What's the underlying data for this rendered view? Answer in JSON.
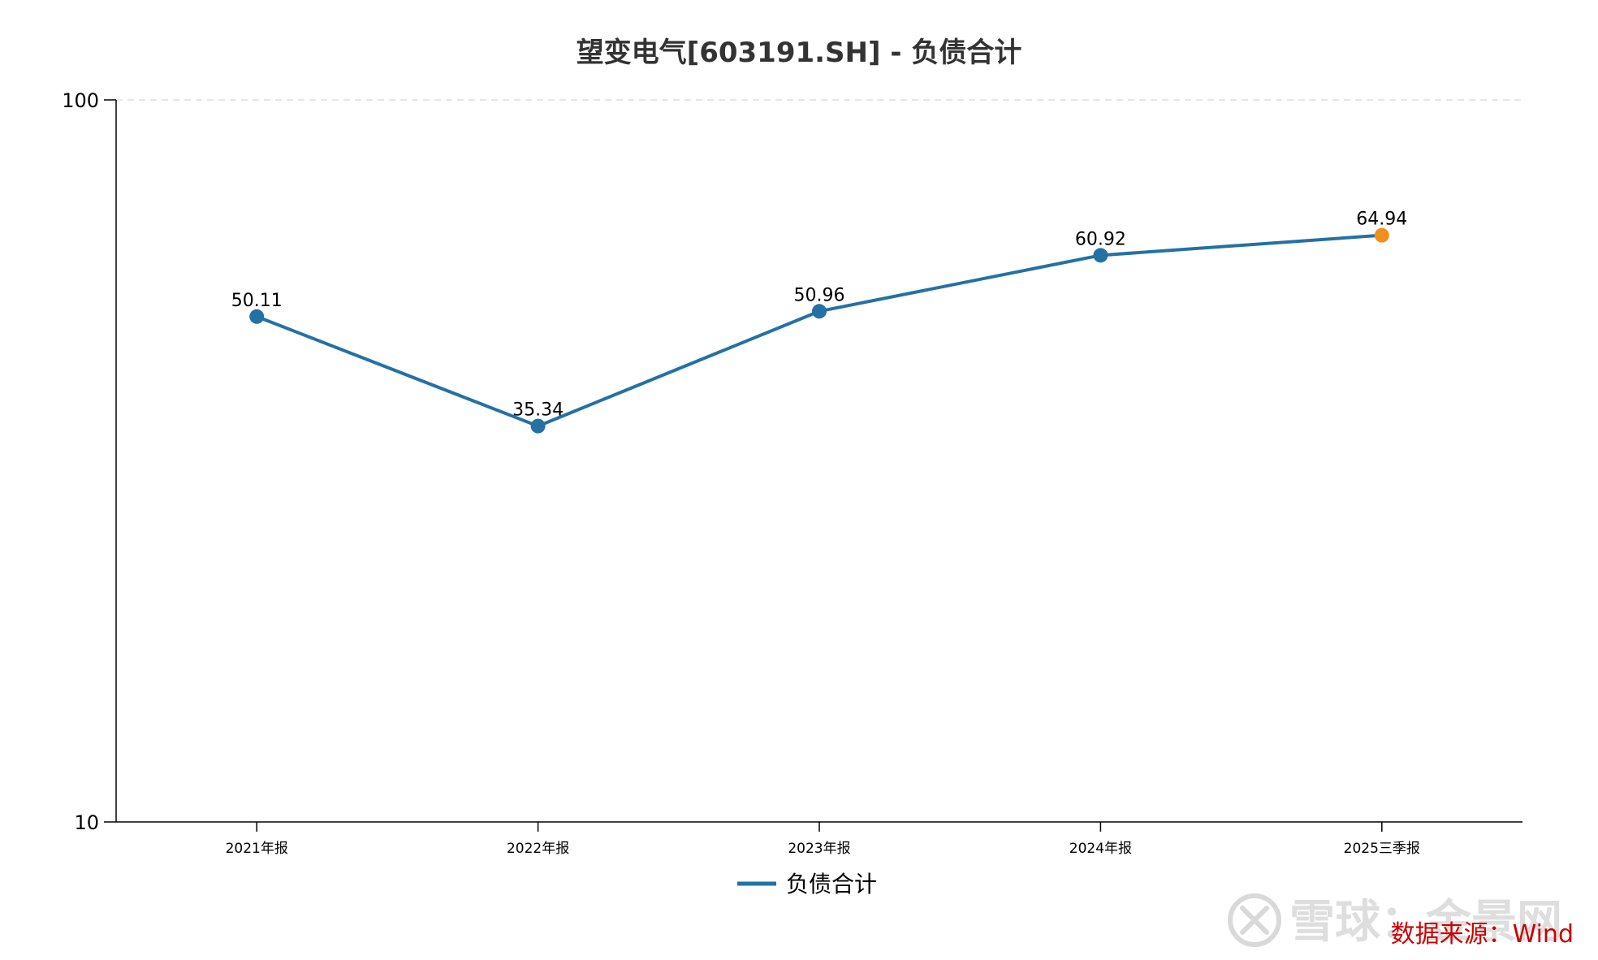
{
  "chart_data": {
    "type": "line",
    "title": "望变电气[603191.SH] - 负债合计",
    "categories": [
      "2021年报",
      "2022年报",
      "2023年报",
      "2024年报",
      "2025三季报"
    ],
    "series": [
      {
        "name": "负债合计",
        "values": [
          50.11,
          35.34,
          50.96,
          60.92,
          64.94
        ],
        "color": "#2471a3",
        "last_point_color": "#f28e1c"
      }
    ],
    "data_labels": [
      "50.11",
      "35.34",
      "50.96",
      "60.92",
      "64.94"
    ],
    "y_scale": "log",
    "ylim": [
      10,
      100
    ],
    "yticks": [
      "10",
      "100"
    ],
    "grid": "dashed line at top tick only",
    "legend": "bottom-center"
  },
  "watermark": {
    "text": "雪球：金景网"
  },
  "source": {
    "text": "数据来源：Wind"
  }
}
